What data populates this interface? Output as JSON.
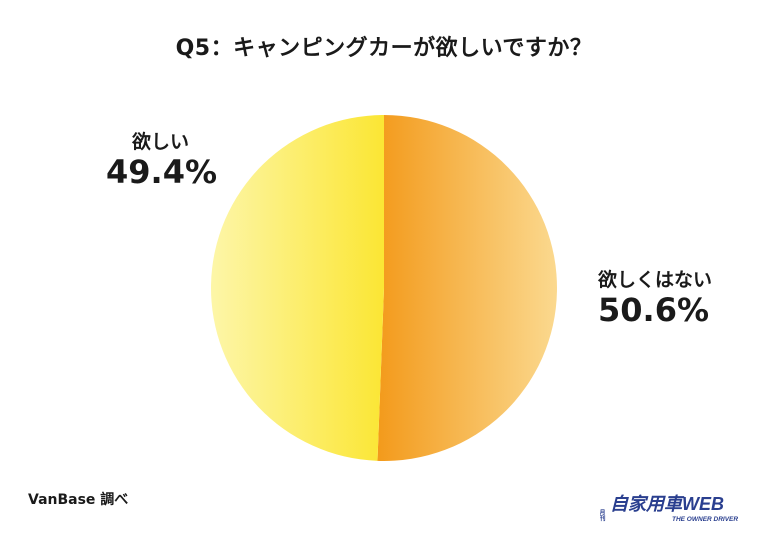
{
  "chart_data": {
    "type": "pie",
    "title": "Q5：キャンピングカーが欲しいですか？",
    "slices": [
      {
        "label": "欲しくはない",
        "value": 50.6,
        "display": "50.6%",
        "colors": [
          "#f39a1b",
          "#fbd98f"
        ]
      },
      {
        "label": "欲しい",
        "value": 49.4,
        "display": "49.4%",
        "colors": [
          "#fbe634",
          "#fdf6a8"
        ]
      }
    ],
    "start_angle": "top",
    "direction": "clockwise"
  },
  "footer": {
    "source": "VanBase 調べ"
  },
  "logo": {
    "text": "自家用車WEB",
    "prefix": "月刊",
    "tagline": "THE OWNER DRIVER",
    "color": "#2a3f8f"
  }
}
